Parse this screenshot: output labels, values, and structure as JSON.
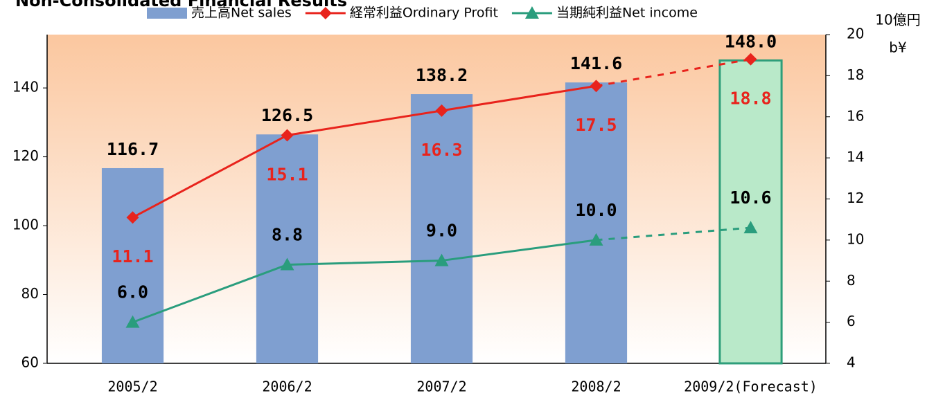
{
  "chart_data": {
    "type": "bar",
    "title": "Non-Consolidated Financial Results",
    "categories": [
      "2005/2",
      "2006/2",
      "2007/2",
      "2008/2",
      "2009/2(Forecast)"
    ],
    "series": [
      {
        "name": "売上高Net sales",
        "type": "bar",
        "color": "#7f9fd0",
        "forecast_color": "#b9e9c9",
        "forecast_edge_color": "#2e9e7a",
        "values": [
          116.7,
          126.5,
          138.2,
          141.6,
          148.0
        ],
        "value_labels": [
          "116.7",
          "126.5",
          "138.2",
          "141.6",
          "148.0"
        ]
      },
      {
        "name": "経常利益Ordinary Profit",
        "type": "line",
        "marker": "diamond",
        "axis": "y2",
        "color": "#e8231c",
        "values": [
          11.1,
          15.1,
          16.3,
          17.5,
          18.8
        ],
        "value_labels": [
          "11.1",
          "15.1",
          "16.3",
          "17.5",
          "18.8"
        ]
      },
      {
        "name": "当期純利益Net income",
        "type": "line",
        "marker": "triangle",
        "axis": "y2",
        "color": "#2a9d7d",
        "values": [
          6.0,
          8.8,
          9.0,
          10.0,
          10.6
        ],
        "value_labels": [
          "6.0",
          "8.8",
          "9.0",
          "10.0",
          "10.6"
        ]
      }
    ],
    "forecast_index": 4,
    "ylim": [
      60,
      155.5
    ],
    "yticks": [
      60,
      80,
      100,
      120,
      140
    ],
    "y2lim": [
      4,
      20
    ],
    "y2ticks": [
      4,
      6,
      8,
      10,
      12,
      14,
      16,
      18,
      20
    ],
    "y2label": [
      "10億円",
      "b¥"
    ],
    "legend": "top",
    "grid": false
  }
}
